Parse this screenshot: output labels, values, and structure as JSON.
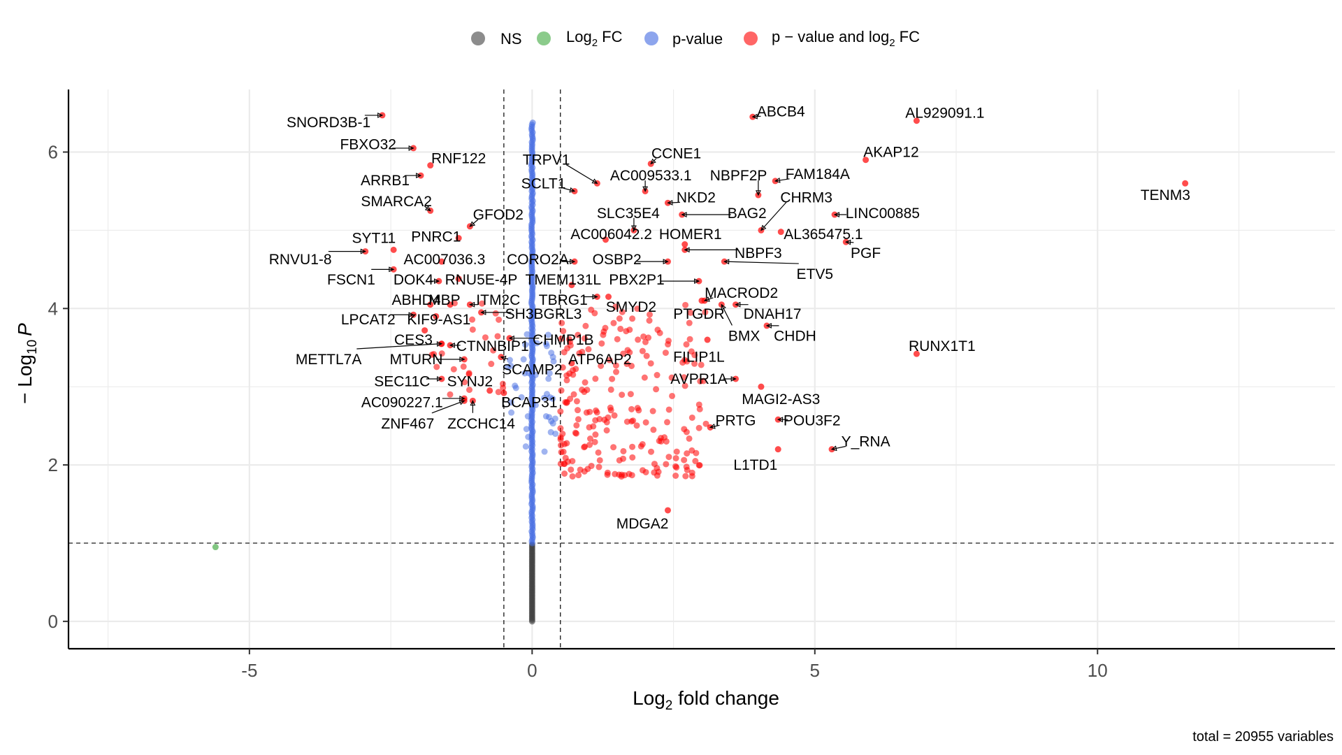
{
  "chart_data": {
    "type": "scatter",
    "subtype": "volcano",
    "xlabel_main": "Log",
    "xlabel_sub": "2",
    "xlabel_rest": " fold change",
    "ylabel_main": "− Log",
    "ylabel_sub": "10",
    "ylabel_p": "P",
    "xlim": [
      -8.2,
      14.2
    ],
    "ylim": [
      -0.35,
      6.8
    ],
    "x_ticks": [
      -5,
      0,
      5,
      10
    ],
    "y_ticks": [
      0,
      2,
      4,
      6
    ],
    "x_tick_labels": [
      "-5",
      "0",
      "5",
      "10"
    ],
    "y_tick_labels": [
      "0",
      "2",
      "4",
      "6"
    ],
    "fc_cutoff": 0.5,
    "p_cutoff": 1,
    "grid": true,
    "legend_position": "top",
    "legend": [
      {
        "key": "ns",
        "label": "NS",
        "color": "#404040"
      },
      {
        "key": "fc",
        "label_main": "Log",
        "label_sub": "2",
        "label_rest": " FC",
        "color": "#3ea83e"
      },
      {
        "key": "p",
        "label": "p-value",
        "color": "#4169e1"
      },
      {
        "key": "both",
        "label_main": "p − value and log",
        "label_sub": "2",
        "label_rest": " FC",
        "color": "#ff0000"
      }
    ],
    "caption": "total = 20955 variables",
    "fc_only_points": [
      [
        -5.6,
        0.95
      ]
    ],
    "labeled_genes": [
      {
        "gene": "SNORD3B-1",
        "x": -2.65,
        "y": 6.47,
        "lx": -3.6,
        "ly": 6.38
      },
      {
        "gene": "FBXO32",
        "x": -2.1,
        "y": 6.05,
        "lx": -2.9,
        "ly": 6.1
      },
      {
        "gene": "RNF122",
        "x": -1.8,
        "y": 5.83,
        "lx": -1.3,
        "ly": 5.92
      },
      {
        "gene": "ARRB1",
        "x": -1.97,
        "y": 5.7,
        "lx": -2.6,
        "ly": 5.64
      },
      {
        "gene": "SMARCA2",
        "x": -1.8,
        "y": 5.25,
        "lx": -2.4,
        "ly": 5.37
      },
      {
        "gene": "GFOD2",
        "x": -1.1,
        "y": 5.05,
        "lx": -0.6,
        "ly": 5.2
      },
      {
        "gene": "PNRC1",
        "x": -1.3,
        "y": 4.9,
        "lx": -1.7,
        "ly": 4.92
      },
      {
        "gene": "SYT11",
        "x": -2.45,
        "y": 4.75,
        "lx": -2.8,
        "ly": 4.9
      },
      {
        "gene": "RNVU1-8",
        "x": -2.95,
        "y": 4.73,
        "lx": -4.1,
        "ly": 4.63
      },
      {
        "gene": "AC007036.3",
        "x": -1.6,
        "y": 4.6,
        "lx": -1.55,
        "ly": 4.63
      },
      {
        "gene": "CORO2A",
        "x": 0.75,
        "y": 4.6,
        "lx": 0.1,
        "ly": 4.63
      },
      {
        "gene": "FSCN1",
        "x": -2.45,
        "y": 4.5,
        "lx": -3.2,
        "ly": 4.37
      },
      {
        "gene": "DOK4",
        "x": -1.65,
        "y": 4.35,
        "lx": -2.1,
        "ly": 4.37
      },
      {
        "gene": "RNU5E-4P",
        "x": -1.3,
        "y": 4.38,
        "lx": -0.9,
        "ly": 4.37
      },
      {
        "gene": "TMEM131L",
        "x": 0.7,
        "y": 4.3,
        "lx": 0.55,
        "ly": 4.37
      },
      {
        "gene": "ABHD4",
        "x": -1.8,
        "y": 4.05,
        "lx": -2.05,
        "ly": 4.11
      },
      {
        "gene": "MBP",
        "x": -1.45,
        "y": 4.05,
        "lx": -1.55,
        "ly": 4.11
      },
      {
        "gene": "ITM2C",
        "x": -1.1,
        "y": 4.05,
        "lx": -0.6,
        "ly": 4.11
      },
      {
        "gene": "TBRG1",
        "x": 1.15,
        "y": 4.15,
        "lx": 0.55,
        "ly": 4.11
      },
      {
        "gene": "LPCAT2",
        "x": -2.1,
        "y": 3.92,
        "lx": -2.9,
        "ly": 3.86
      },
      {
        "gene": "KIF9-AS1",
        "x": -1.7,
        "y": 3.9,
        "lx": -1.65,
        "ly": 3.86
      },
      {
        "gene": "SH3BGRL3",
        "x": -0.9,
        "y": 3.95,
        "lx": 0.2,
        "ly": 3.93
      },
      {
        "gene": "CES3",
        "x": -1.9,
        "y": 3.72,
        "lx": -2.1,
        "ly": 3.6
      },
      {
        "gene": "CHMP1B",
        "x": -0.4,
        "y": 3.62,
        "lx": 0.55,
        "ly": 3.6
      },
      {
        "gene": "CTNNBIP1",
        "x": -1.45,
        "y": 3.53,
        "lx": -0.7,
        "ly": 3.52
      },
      {
        "gene": "METTL7A",
        "x": -1.6,
        "y": 3.55,
        "lx": -3.6,
        "ly": 3.35
      },
      {
        "gene": "MTURN",
        "x": -1.2,
        "y": 3.35,
        "lx": -2.05,
        "ly": 3.35
      },
      {
        "gene": "ATP6AP2",
        "x": 0.7,
        "y": 3.3,
        "lx": 1.2,
        "ly": 3.35
      },
      {
        "gene": "SCAMP2",
        "x": -0.55,
        "y": 3.38,
        "lx": 0.0,
        "ly": 3.22
      },
      {
        "gene": "SEC11C",
        "x": -1.6,
        "y": 3.1,
        "lx": -2.3,
        "ly": 3.07
      },
      {
        "gene": "SYNJ2",
        "x": -0.75,
        "y": 2.95,
        "lx": -1.1,
        "ly": 3.07
      },
      {
        "gene": "AC090227.1",
        "x": -1.2,
        "y": 2.85,
        "lx": -2.3,
        "ly": 2.8
      },
      {
        "gene": "BCAP31",
        "x": -0.5,
        "y": 2.92,
        "lx": -0.05,
        "ly": 2.8
      },
      {
        "gene": "ZNF467",
        "x": -1.2,
        "y": 2.82,
        "lx": -2.2,
        "ly": 2.53
      },
      {
        "gene": "ZCCHC14",
        "x": -1.05,
        "y": 2.82,
        "lx": -0.9,
        "ly": 2.53
      },
      {
        "gene": "TRPV1",
        "x": 1.15,
        "y": 5.6,
        "lx": 0.25,
        "ly": 5.9
      },
      {
        "gene": "SCLT1",
        "x": 0.75,
        "y": 5.5,
        "lx": 0.2,
        "ly": 5.6
      },
      {
        "gene": "AC009533.1",
        "x": 2.0,
        "y": 5.5,
        "lx": 2.1,
        "ly": 5.7
      },
      {
        "gene": "CCNE1",
        "x": 2.1,
        "y": 5.85,
        "lx": 2.55,
        "ly": 5.98
      },
      {
        "gene": "NKD2",
        "x": 2.4,
        "y": 5.35,
        "lx": 2.9,
        "ly": 5.42
      },
      {
        "gene": "SLC35E4",
        "x": 1.8,
        "y": 5.0,
        "lx": 1.7,
        "ly": 5.22
      },
      {
        "gene": "BAG2",
        "x": 2.65,
        "y": 5.2,
        "lx": 3.8,
        "ly": 5.22
      },
      {
        "gene": "AC006042.2",
        "x": 1.3,
        "y": 4.88,
        "lx": 1.4,
        "ly": 4.95
      },
      {
        "gene": "HOMER1",
        "x": 2.7,
        "y": 4.82,
        "lx": 2.8,
        "ly": 4.95
      },
      {
        "gene": "OSBP2",
        "x": 2.4,
        "y": 4.6,
        "lx": 1.5,
        "ly": 4.63
      },
      {
        "gene": "NBPF3",
        "x": 2.7,
        "y": 4.75,
        "lx": 4.0,
        "ly": 4.71
      },
      {
        "gene": "PBX2P1",
        "x": 2.95,
        "y": 4.35,
        "lx": 1.85,
        "ly": 4.37
      },
      {
        "gene": "ETV5",
        "x": 3.4,
        "y": 4.6,
        "lx": 5.0,
        "ly": 4.44
      },
      {
        "gene": "MACROD2",
        "x": 3.05,
        "y": 4.1,
        "lx": 3.7,
        "ly": 4.2
      },
      {
        "gene": "SMYD2",
        "x": 1.35,
        "y": 4.15,
        "lx": 1.75,
        "ly": 4.02
      },
      {
        "gene": "PTGDR",
        "x": 3.0,
        "y": 4.1,
        "lx": 2.95,
        "ly": 3.93
      },
      {
        "gene": "DNAH17",
        "x": 3.6,
        "y": 4.05,
        "lx": 4.25,
        "ly": 3.93
      },
      {
        "gene": "BMX",
        "x": 3.35,
        "y": 4.05,
        "lx": 3.75,
        "ly": 3.65
      },
      {
        "gene": "CHDH",
        "x": 4.15,
        "y": 3.78,
        "lx": 4.65,
        "ly": 3.65
      },
      {
        "gene": "FILIP1L",
        "x": 3.1,
        "y": 3.6,
        "lx": 2.95,
        "ly": 3.38
      },
      {
        "gene": "AVPR1A",
        "x": 3.6,
        "y": 3.1,
        "lx": 2.95,
        "ly": 3.1
      },
      {
        "gene": "MAGI2-AS3",
        "x": 4.05,
        "y": 3.0,
        "lx": 4.4,
        "ly": 2.84
      },
      {
        "gene": "PRTG",
        "x": 3.15,
        "y": 2.48,
        "lx": 3.6,
        "ly": 2.57
      },
      {
        "gene": "POU3F2",
        "x": 4.35,
        "y": 2.58,
        "lx": 4.95,
        "ly": 2.57
      },
      {
        "gene": "L1TD1",
        "x": 4.35,
        "y": 2.2,
        "lx": 3.95,
        "ly": 2.0
      },
      {
        "gene": "Y_RNA",
        "x": 5.3,
        "y": 2.2,
        "lx": 5.9,
        "ly": 2.3
      },
      {
        "gene": "MDGA2",
        "x": 2.4,
        "y": 1.42,
        "lx": 1.95,
        "ly": 1.25
      },
      {
        "gene": "ABCB4",
        "x": 3.9,
        "y": 6.45,
        "lx": 4.4,
        "ly": 6.52
      },
      {
        "gene": "AL929091.1",
        "x": 6.8,
        "y": 6.4,
        "lx": 7.3,
        "ly": 6.5
      },
      {
        "gene": "AKAP12",
        "x": 5.9,
        "y": 5.9,
        "lx": 6.35,
        "ly": 6.0
      },
      {
        "gene": "FAM184A",
        "x": 4.3,
        "y": 5.63,
        "lx": 5.05,
        "ly": 5.72
      },
      {
        "gene": "NBPF2P",
        "x": 4.0,
        "y": 5.45,
        "lx": 3.65,
        "ly": 5.7
      },
      {
        "gene": "CHRM3",
        "x": 4.05,
        "y": 5.0,
        "lx": 4.85,
        "ly": 5.42
      },
      {
        "gene": "LINC00885",
        "x": 5.35,
        "y": 5.2,
        "lx": 6.2,
        "ly": 5.22
      },
      {
        "gene": "AL365475.1",
        "x": 4.4,
        "y": 4.98,
        "lx": 5.15,
        "ly": 4.95
      },
      {
        "gene": "PGF",
        "x": 5.55,
        "y": 4.85,
        "lx": 5.9,
        "ly": 4.71
      },
      {
        "gene": "TENM3",
        "x": 11.55,
        "y": 5.6,
        "lx": 11.2,
        "ly": 5.45
      },
      {
        "gene": "RUNX1T1",
        "x": 6.8,
        "y": 3.42,
        "lx": 7.25,
        "ly": 3.52
      }
    ]
  }
}
